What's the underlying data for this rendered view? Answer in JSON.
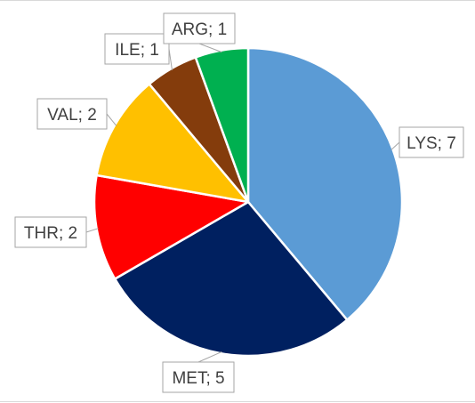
{
  "chart_data": {
    "type": "pie",
    "title": "",
    "slices": [
      {
        "label": "LYS",
        "value": 7,
        "color": "#5b9bd5",
        "data_label": "LYS; 7"
      },
      {
        "label": "MET",
        "value": 5,
        "color": "#002060",
        "data_label": "MET; 5"
      },
      {
        "label": "THR",
        "value": 2,
        "color": "#ff0000",
        "data_label": "THR; 2"
      },
      {
        "label": "VAL",
        "value": 2,
        "color": "#ffc000",
        "data_label": "VAL; 2"
      },
      {
        "label": "ILE",
        "value": 1,
        "color": "#843c0c",
        "data_label": "ILE; 1"
      },
      {
        "label": "ARG",
        "value": 1,
        "color": "#00b050",
        "data_label": "ARG; 1"
      }
    ],
    "start_angle": "12 o'clock",
    "direction": "clockwise",
    "legend": "none",
    "label_style": "callout"
  }
}
